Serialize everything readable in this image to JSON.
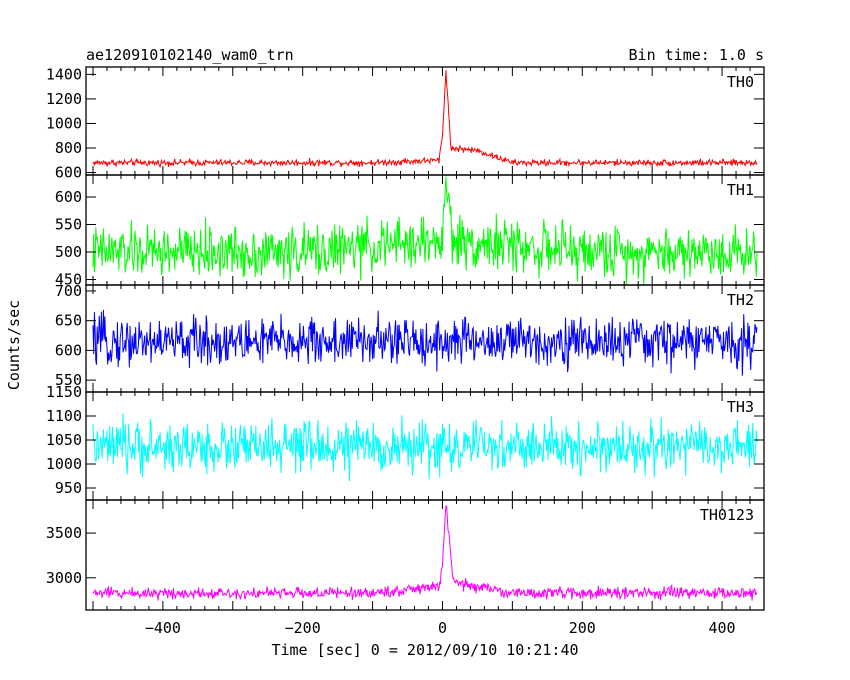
{
  "title_left": "ae120910102140_wam0_trn",
  "title_right": "Bin time: 1.0 s",
  "ylabel": "Counts/sec",
  "xlabel": "Time [sec] 0 = 2012/09/10 10:21:40",
  "chart_data": {
    "type": "line",
    "xlim": [
      -510,
      460
    ],
    "x_ticks": [
      -400,
      -200,
      0,
      200,
      400
    ],
    "x_tick_labels": [
      "−400",
      "−200",
      "0",
      "200",
      "400"
    ],
    "bin_time_s": 1.0,
    "panels": [
      {
        "name": "TH0",
        "color": "#ff0000",
        "ylim": [
          580,
          1460
        ],
        "ticks": [
          600,
          800,
          1000,
          1200,
          1400
        ],
        "approx_series": [
          {
            "x": -500,
            "y": 680
          },
          {
            "x": -300,
            "y": 680
          },
          {
            "x": -100,
            "y": 680
          },
          {
            "x": -5,
            "y": 700
          },
          {
            "x": 0,
            "y": 900
          },
          {
            "x": 5,
            "y": 1440
          },
          {
            "x": 12,
            "y": 800
          },
          {
            "x": 50,
            "y": 780
          },
          {
            "x": 100,
            "y": 680
          },
          {
            "x": 300,
            "y": 680
          },
          {
            "x": 450,
            "y": 680
          }
        ]
      },
      {
        "name": "TH1",
        "color": "#00ff00",
        "ylim": [
          440,
          640
        ],
        "ticks": [
          450,
          500,
          550,
          600
        ],
        "approx_series": [
          {
            "x": -500,
            "y": 500
          },
          {
            "x": -200,
            "y": 500
          },
          {
            "x": 0,
            "y": 520
          },
          {
            "x": 5,
            "y": 630
          },
          {
            "x": 15,
            "y": 520
          },
          {
            "x": 200,
            "y": 500
          },
          {
            "x": 450,
            "y": 500
          }
        ]
      },
      {
        "name": "TH2",
        "color": "#0000ff",
        "ylim": [
          530,
          710
        ],
        "ticks": [
          550,
          600,
          650,
          700
        ],
        "approx_series": [
          {
            "x": -500,
            "y": 615
          },
          {
            "x": 0,
            "y": 615
          },
          {
            "x": 450,
            "y": 615
          }
        ]
      },
      {
        "name": "TH3",
        "color": "#00ffff",
        "ylim": [
          925,
          1150
        ],
        "ticks": [
          950,
          1000,
          1050,
          1100,
          1150
        ],
        "approx_series": [
          {
            "x": -500,
            "y": 1035
          },
          {
            "x": 0,
            "y": 1035
          },
          {
            "x": 450,
            "y": 1035
          }
        ]
      },
      {
        "name": "TH0123",
        "color": "#ff00ff",
        "ylim": [
          2640,
          3870
        ],
        "ticks": [
          3000,
          3500
        ],
        "approx_series": [
          {
            "x": -500,
            "y": 2830
          },
          {
            "x": -100,
            "y": 2830
          },
          {
            "x": -5,
            "y": 2900
          },
          {
            "x": 0,
            "y": 3150
          },
          {
            "x": 5,
            "y": 3840
          },
          {
            "x": 15,
            "y": 2950
          },
          {
            "x": 100,
            "y": 2830
          },
          {
            "x": 450,
            "y": 2830
          }
        ]
      }
    ]
  }
}
